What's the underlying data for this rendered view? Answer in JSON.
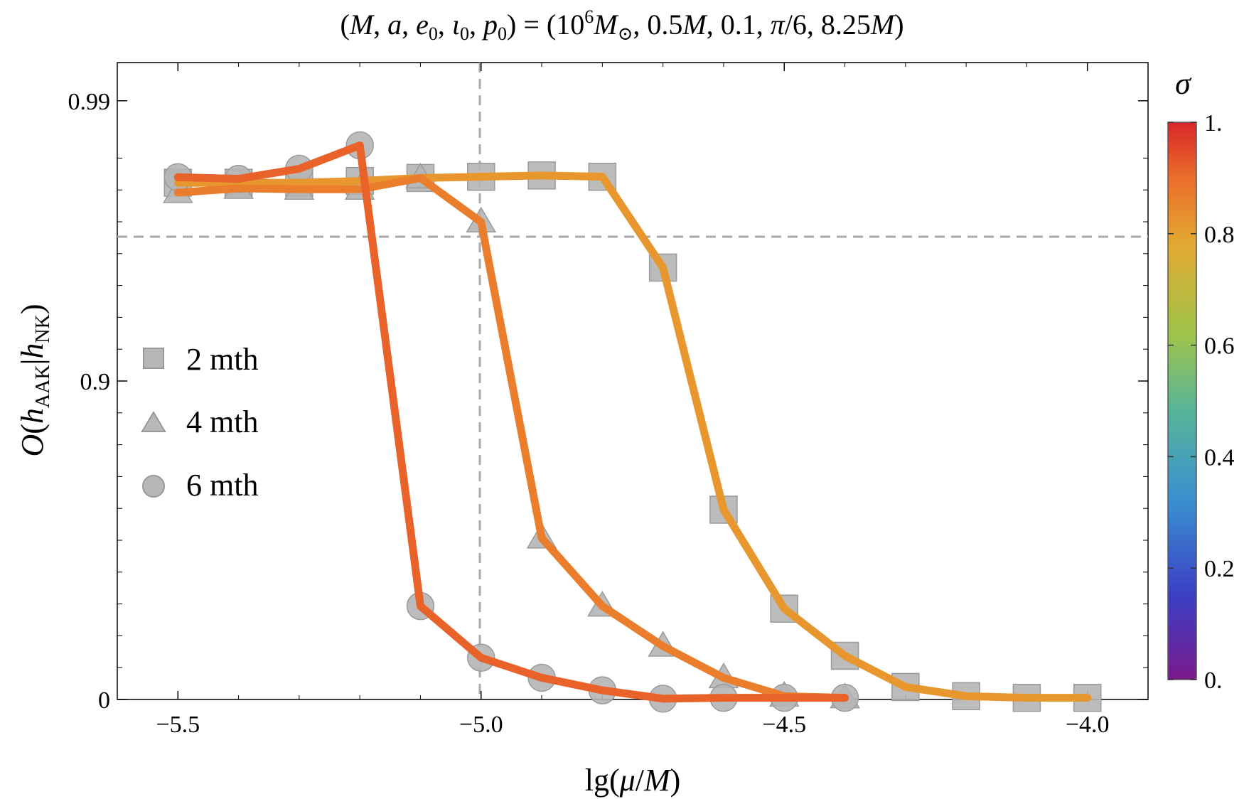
{
  "chart_data": {
    "type": "line",
    "title": "(M, a, e0, ι0, p0) = (10^6 M⊙, 0.5M, 0.1, π/6, 8.25M)",
    "xlabel": "lg(μ/M)",
    "ylabel": "O(h_AAK | h_NK)",
    "xlim": [
      -5.6,
      -3.9
    ],
    "ylim": [
      0,
      1
    ],
    "x_ticks": [
      {
        "value": -5.5,
        "label": "−5.5"
      },
      {
        "value": -5.0,
        "label": "−5.0"
      },
      {
        "value": -4.5,
        "label": "−4.5"
      },
      {
        "value": -4.0,
        "label": "−4.0"
      }
    ],
    "y_ticks": [
      {
        "value": 0,
        "label": "0"
      },
      {
        "value": 0.9,
        "label": "0.9"
      },
      {
        "value": 0.99,
        "label": "0.99"
      }
    ],
    "y_scale_note": "axis is nonlinear: 0 and 0.9 and 0.99 ticks equally spaced",
    "reference_lines": {
      "x": -5.0,
      "y": 0.97
    },
    "legend": {
      "position": "left-middle",
      "entries": [
        {
          "label": "2 mth",
          "marker": "square"
        },
        {
          "label": "4 mth",
          "marker": "triangle"
        },
        {
          "label": "6 mth",
          "marker": "circle"
        }
      ]
    },
    "colorbar": {
      "label": "σ",
      "ticks": [
        {
          "value": 0,
          "label": "0."
        },
        {
          "value": 0.2,
          "label": "0.2"
        },
        {
          "value": 0.4,
          "label": "0.4"
        },
        {
          "value": 0.6,
          "label": "0.6"
        },
        {
          "value": 0.8,
          "label": "0.8"
        },
        {
          "value": 1,
          "label": "1."
        }
      ],
      "colors": [
        "#7a1a8c",
        "#3b3fc4",
        "#3a8fd0",
        "#57b49a",
        "#9fc44a",
        "#e3a932",
        "#ea6e2a",
        "#d9262a"
      ]
    },
    "series": [
      {
        "name": "2 mth",
        "marker": "square",
        "color": "#e8972e",
        "x": [
          -5.5,
          -5.4,
          -5.3,
          -5.2,
          -5.1,
          -5.0,
          -4.9,
          -4.8,
          -4.7,
          -4.6,
          -4.5,
          -4.4,
          -4.3,
          -4.2,
          -4.1,
          -4.0
        ],
        "y_pos": [
          0.8113,
          0.8113,
          0.8113,
          0.814,
          0.8188,
          0.8207,
          0.8227,
          0.8207,
          0.6781,
          0.298,
          0.1426,
          0.0686,
          0.0196,
          0.0052,
          0.0026,
          0.0026
        ]
      },
      {
        "name": "4 mth",
        "marker": "triangle",
        "color": "#ea7e2c",
        "x": [
          -5.5,
          -5.4,
          -5.3,
          -5.2,
          -5.1,
          -5.0,
          -4.9,
          -4.8,
          -4.7,
          -4.6,
          -4.5,
          -4.4
        ],
        "y_pos": [
          0.7959,
          0.8024,
          0.8011,
          0.8011,
          0.8188,
          0.7497,
          0.2535,
          0.1466,
          0.0837,
          0.034,
          0.0052,
          0.0026
        ]
      },
      {
        "name": "6 mth",
        "marker": "circle",
        "color": "#e8622a",
        "x": [
          -5.5,
          -5.4,
          -5.3,
          -5.2,
          -5.1,
          -5.0,
          -4.9,
          -4.8,
          -4.7,
          -4.6,
          -4.5,
          -4.4
        ],
        "y_pos": [
          0.82,
          0.8174,
          0.8333,
          0.87,
          0.1466,
          0.0655,
          0.0341,
          0.0144,
          0.0013,
          0.0026,
          0.0026,
          0.0026
        ]
      }
    ]
  }
}
